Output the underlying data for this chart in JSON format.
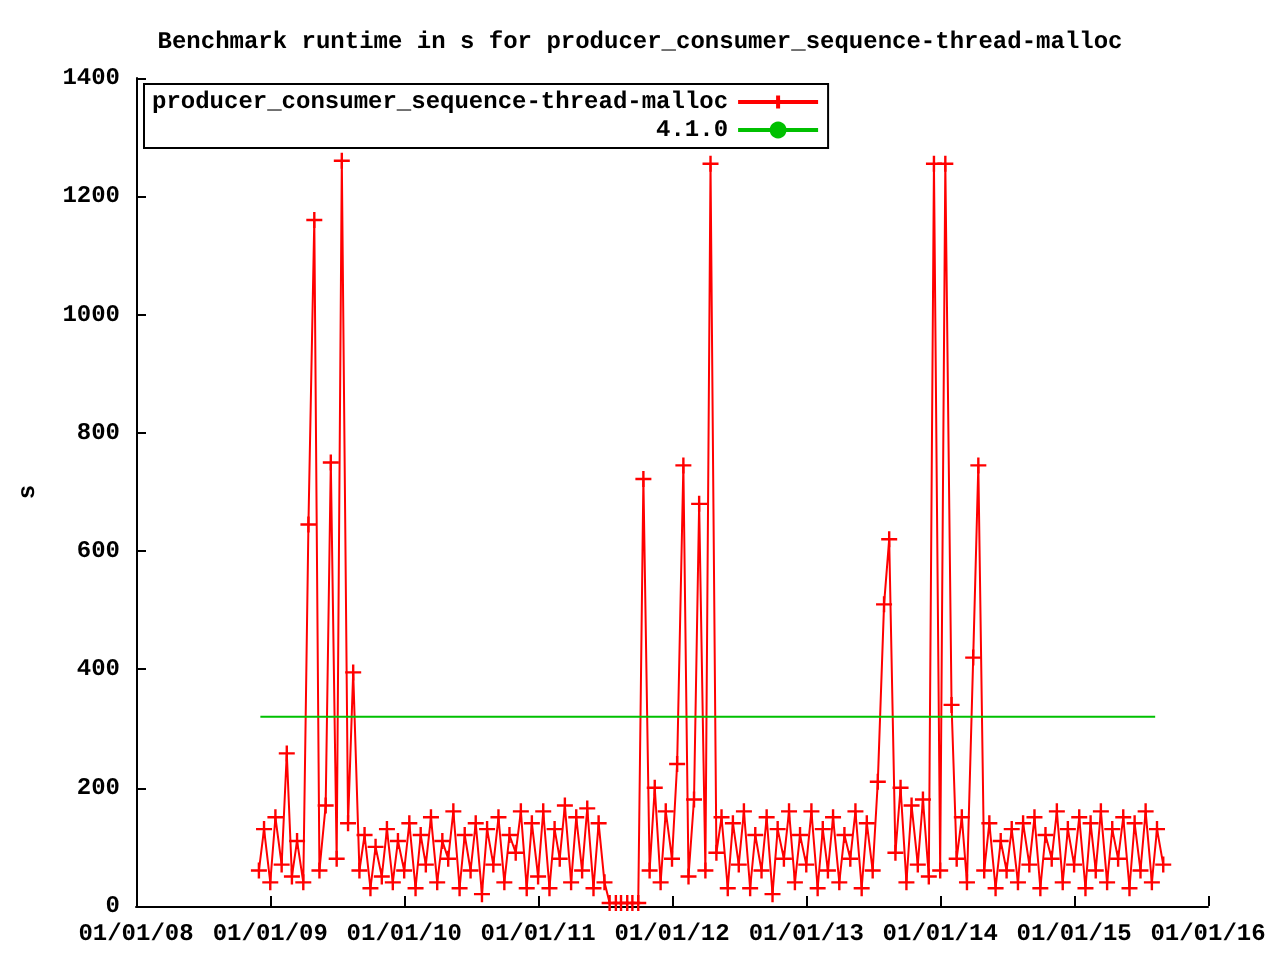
{
  "chart_data": {
    "type": "line",
    "title": "Benchmark runtime in s for producer_consumer_sequence-thread-malloc",
    "ylabel": "s",
    "legend": "top left",
    "grid": false,
    "line_style": "solid",
    "xlim": [
      "2008-01-01",
      "2016-01-01"
    ],
    "xticks": [
      {
        "value": "2008-01-01",
        "label": "01/01/08"
      },
      {
        "value": "2009-01-01",
        "label": "01/01/09"
      },
      {
        "value": "2010-01-01",
        "label": "01/01/10"
      },
      {
        "value": "2011-01-01",
        "label": "01/01/11"
      },
      {
        "value": "2012-01-01",
        "label": "01/01/12"
      },
      {
        "value": "2013-01-01",
        "label": "01/01/13"
      },
      {
        "value": "2014-01-01",
        "label": "01/01/14"
      },
      {
        "value": "2015-01-01",
        "label": "01/01/15"
      },
      {
        "value": "2016-01-01",
        "label": "01/01/16"
      }
    ],
    "ylim": [
      0,
      1400
    ],
    "yticks": [
      0,
      200,
      400,
      600,
      800,
      1000,
      1200,
      1400
    ],
    "series": [
      {
        "name": "producer_consumer_sequence-thread-malloc",
        "color": "#ff0000",
        "marker": "cross",
        "x": [
          "2008-12-01",
          "2008-12-15",
          "2009-01-01",
          "2009-01-15",
          "2009-02-01",
          "2009-02-15",
          "2009-03-01",
          "2009-03-15",
          "2009-04-01",
          "2009-04-15",
          "2009-05-01",
          "2009-05-15",
          "2009-06-01",
          "2009-06-15",
          "2009-07-01",
          "2009-07-15",
          "2009-08-01",
          "2009-08-15",
          "2009-09-01",
          "2009-09-15",
          "2009-10-01",
          "2009-10-15",
          "2009-11-01",
          "2009-11-15",
          "2009-12-01",
          "2009-12-15",
          "2010-01-01",
          "2010-01-15",
          "2010-02-01",
          "2010-02-15",
          "2010-03-01",
          "2010-03-15",
          "2010-04-01",
          "2010-04-15",
          "2010-05-01",
          "2010-05-15",
          "2010-06-01",
          "2010-06-15",
          "2010-07-01",
          "2010-07-15",
          "2010-08-01",
          "2010-08-15",
          "2010-09-01",
          "2010-09-15",
          "2010-10-01",
          "2010-10-15",
          "2010-11-01",
          "2010-11-15",
          "2010-12-01",
          "2010-12-15",
          "2011-01-01",
          "2011-01-15",
          "2011-02-01",
          "2011-02-15",
          "2011-03-01",
          "2011-03-15",
          "2011-04-01",
          "2011-04-15",
          "2011-05-01",
          "2011-05-15",
          "2011-06-01",
          "2011-06-15",
          "2011-07-01",
          "2011-07-15",
          "2011-08-01",
          "2011-08-15",
          "2011-09-01",
          "2011-09-15",
          "2011-10-01",
          "2011-10-15",
          "2011-11-01",
          "2011-11-15",
          "2011-12-01",
          "2011-12-15",
          "2012-01-01",
          "2012-01-15",
          "2012-02-01",
          "2012-02-15",
          "2012-03-01",
          "2012-03-15",
          "2012-04-01",
          "2012-04-15",
          "2012-05-01",
          "2012-05-15",
          "2012-06-01",
          "2012-06-15",
          "2012-07-01",
          "2012-07-15",
          "2012-08-01",
          "2012-08-15",
          "2012-09-01",
          "2012-09-15",
          "2012-10-01",
          "2012-10-15",
          "2012-11-01",
          "2012-11-15",
          "2012-12-01",
          "2012-12-15",
          "2013-01-01",
          "2013-01-15",
          "2013-02-01",
          "2013-02-15",
          "2013-03-01",
          "2013-03-15",
          "2013-04-01",
          "2013-04-15",
          "2013-05-01",
          "2013-05-15",
          "2013-06-01",
          "2013-06-15",
          "2013-07-01",
          "2013-07-15",
          "2013-08-01",
          "2013-08-15",
          "2013-09-01",
          "2013-09-15",
          "2013-10-01",
          "2013-10-15",
          "2013-11-01",
          "2013-11-15",
          "2013-12-01",
          "2013-12-15",
          "2014-01-01",
          "2014-01-15",
          "2014-02-01",
          "2014-02-15",
          "2014-03-01",
          "2014-03-15",
          "2014-04-01",
          "2014-04-15",
          "2014-05-01",
          "2014-05-15",
          "2014-06-01",
          "2014-06-15",
          "2014-07-01",
          "2014-07-15",
          "2014-08-01",
          "2014-08-15",
          "2014-09-01",
          "2014-09-15",
          "2014-10-01",
          "2014-10-15",
          "2014-11-01",
          "2014-11-15",
          "2014-12-01",
          "2014-12-15",
          "2015-01-01",
          "2015-01-15",
          "2015-02-01",
          "2015-02-15",
          "2015-03-01",
          "2015-03-15",
          "2015-04-01",
          "2015-04-15",
          "2015-05-01",
          "2015-05-15",
          "2015-06-01",
          "2015-06-15",
          "2015-07-01",
          "2015-07-15",
          "2015-08-01",
          "2015-08-15",
          "2015-09-01"
        ],
        "values": [
          60,
          130,
          40,
          150,
          70,
          258,
          50,
          110,
          40,
          645,
          1160,
          60,
          170,
          750,
          80,
          1260,
          140,
          395,
          60,
          120,
          30,
          100,
          50,
          130,
          40,
          110,
          60,
          140,
          30,
          120,
          70,
          150,
          40,
          110,
          80,
          160,
          30,
          120,
          60,
          140,
          20,
          130,
          70,
          150,
          40,
          120,
          90,
          160,
          30,
          140,
          50,
          160,
          30,
          130,
          80,
          170,
          40,
          150,
          60,
          165,
          30,
          140,
          40,
          5,
          5,
          5,
          5,
          5,
          5,
          722,
          60,
          200,
          40,
          160,
          80,
          240,
          745,
          50,
          180,
          680,
          60,
          1255,
          90,
          150,
          30,
          140,
          70,
          160,
          30,
          120,
          60,
          150,
          20,
          130,
          80,
          160,
          40,
          120,
          70,
          160,
          30,
          130,
          60,
          150,
          40,
          120,
          80,
          160,
          30,
          140,
          60,
          210,
          510,
          620,
          90,
          200,
          40,
          170,
          70,
          180,
          50,
          1255,
          60,
          1255,
          340,
          80,
          150,
          40,
          420,
          745,
          60,
          140,
          30,
          110,
          60,
          130,
          40,
          140,
          70,
          150,
          30,
          120,
          80,
          160,
          40,
          130,
          70,
          150,
          30,
          140,
          60,
          160,
          40,
          130,
          80,
          150,
          30,
          140,
          60,
          160,
          40,
          130,
          70
        ]
      },
      {
        "name": "4.1.0",
        "color": "#00c000",
        "marker": "none",
        "x": [
          "2008-12-05",
          "2015-08-10"
        ],
        "values": [
          320,
          320
        ]
      }
    ]
  }
}
